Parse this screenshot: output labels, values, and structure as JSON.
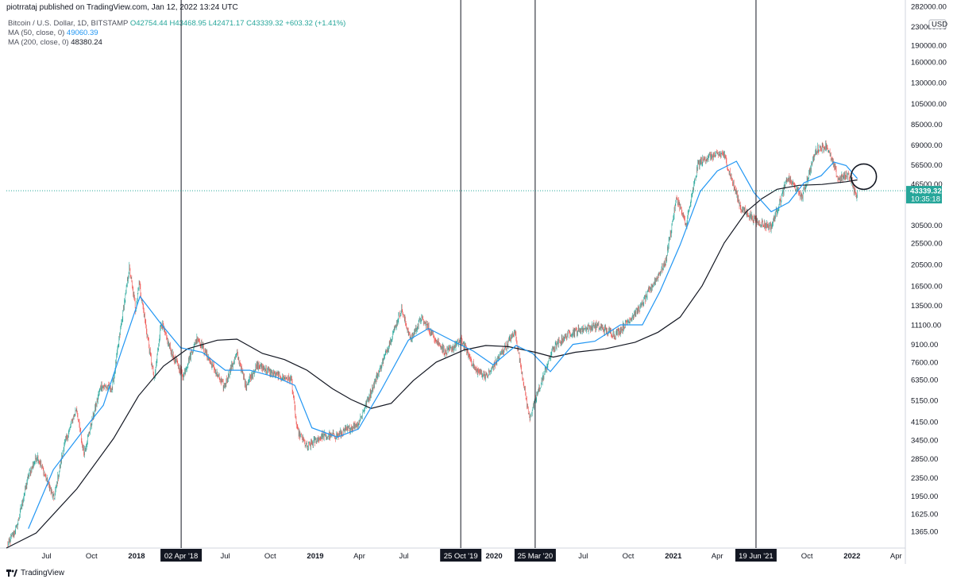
{
  "header": {
    "published": "piotrrataj published on TradingView.com, Jan 12, 2022 13:24 UTC"
  },
  "legend": {
    "symbol": "Bitcoin / U.S. Dollar, 1D, BITSTAMP",
    "open": "O42754.44",
    "high": "H43468.95",
    "low": "L42471.17",
    "close": "C43339.32",
    "change": "+603.32 (+1.41%)",
    "ma50_label": "MA (50, close, 0)",
    "ma50_value": "49060.39",
    "ma200_label": "MA (200, close, 0)",
    "ma200_value": "48380.24"
  },
  "footer": {
    "brand": "TradingView"
  },
  "colors": {
    "up": "#26a69a",
    "down": "#ef5350",
    "ma50": "#2196f3",
    "ma200": "#131722",
    "price_line": "#26a69a",
    "price_label_bg": "#26a69a",
    "marker_bg": "#131722"
  },
  "chart_data": {
    "type": "candlestick",
    "y_scale": "log",
    "y_unit": "USD",
    "ylim": [
      1150,
      282000
    ],
    "y_ticks": [
      {
        "value": 282000,
        "label": "282000.00"
      },
      {
        "value": 230000,
        "label": "230000.00"
      },
      {
        "value": 190000,
        "label": "190000.00"
      },
      {
        "value": 160000,
        "label": "160000.00"
      },
      {
        "value": 130000,
        "label": "130000.00"
      },
      {
        "value": 105000,
        "label": "105000.00"
      },
      {
        "value": 85000,
        "label": "85000.00"
      },
      {
        "value": 69000,
        "label": "69000.00"
      },
      {
        "value": 56500,
        "label": "56500.00"
      },
      {
        "value": 46500,
        "label": "46500.00"
      },
      {
        "value": 30500,
        "label": "30500.00"
      },
      {
        "value": 25500,
        "label": "25500.00"
      },
      {
        "value": 20500,
        "label": "20500.00"
      },
      {
        "value": 16500,
        "label": "16500.00"
      },
      {
        "value": 13500,
        "label": "13500.00"
      },
      {
        "value": 11100,
        "label": "11100.00"
      },
      {
        "value": 9100,
        "label": "9100.00"
      },
      {
        "value": 7600,
        "label": "7600.00"
      },
      {
        "value": 6350,
        "label": "6350.00"
      },
      {
        "value": 5150,
        "label": "5150.00"
      },
      {
        "value": 4150,
        "label": "4150.00"
      },
      {
        "value": 3450,
        "label": "3450.00"
      },
      {
        "value": 2850,
        "label": "2850.00"
      },
      {
        "value": 2350,
        "label": "2350.00"
      },
      {
        "value": 1950,
        "label": "1950.00"
      },
      {
        "value": 1625,
        "label": "1625.00"
      },
      {
        "value": 1365,
        "label": "1365.00"
      }
    ],
    "x_ticks": [
      {
        "date": "2017-07-01",
        "label": "Jul"
      },
      {
        "date": "2017-10-01",
        "label": "Oct"
      },
      {
        "date": "2018-01-01",
        "label": "2018",
        "bold": true
      },
      {
        "date": "2018-07-01",
        "label": "Jul"
      },
      {
        "date": "2018-10-01",
        "label": "Oct"
      },
      {
        "date": "2019-01-01",
        "label": "2019",
        "bold": true
      },
      {
        "date": "2019-04-01",
        "label": "Apr"
      },
      {
        "date": "2019-07-01",
        "label": "Jul"
      },
      {
        "date": "2020-01-01",
        "label": "2020",
        "bold": true
      },
      {
        "date": "2020-07-01",
        "label": "Jul"
      },
      {
        "date": "2020-10-01",
        "label": "Oct"
      },
      {
        "date": "2021-01-01",
        "label": "2021",
        "bold": true
      },
      {
        "date": "2021-04-01",
        "label": "Apr"
      },
      {
        "date": "2021-10-01",
        "label": "Oct"
      },
      {
        "date": "2022-01-01",
        "label": "2022",
        "bold": true
      },
      {
        "date": "2022-04-01",
        "label": "Apr"
      }
    ],
    "x_range": [
      "2017-04-10",
      "2022-04-20"
    ],
    "marked_dates": [
      {
        "date": "2018-04-02",
        "label": "02 Apr '18"
      },
      {
        "date": "2019-10-25",
        "label": "25 Oct '19"
      },
      {
        "date": "2020-03-25",
        "label": "25 Mar '20"
      },
      {
        "date": "2021-06-19",
        "label": "19 Jun '21"
      }
    ],
    "last_price": {
      "value": 43339.32,
      "label": "43339.32",
      "countdown": "10:35:18"
    },
    "axis_unit_label": "USD",
    "price_path": [
      [
        "2017-04-12",
        1180
      ],
      [
        "2017-05-01",
        1420
      ],
      [
        "2017-05-25",
        2400
      ],
      [
        "2017-06-12",
        2950
      ],
      [
        "2017-07-16",
        1900
      ],
      [
        "2017-08-05",
        3200
      ],
      [
        "2017-08-31",
        4750
      ],
      [
        "2017-09-15",
        3000
      ],
      [
        "2017-10-20",
        6000
      ],
      [
        "2017-11-12",
        5800
      ],
      [
        "2017-12-17",
        19800
      ],
      [
        "2017-12-30",
        13000
      ],
      [
        "2018-01-06",
        17100
      ],
      [
        "2018-02-06",
        6300
      ],
      [
        "2018-02-20",
        11400
      ],
      [
        "2018-03-15",
        8200
      ],
      [
        "2018-04-06",
        6600
      ],
      [
        "2018-05-05",
        9800
      ],
      [
        "2018-06-28",
        5900
      ],
      [
        "2018-07-25",
        8300
      ],
      [
        "2018-08-12",
        6000
      ],
      [
        "2018-09-05",
        7400
      ],
      [
        "2018-10-15",
        6600
      ],
      [
        "2018-11-13",
        6400
      ],
      [
        "2018-11-25",
        3800
      ],
      [
        "2018-12-15",
        3200
      ],
      [
        "2019-01-15",
        3600
      ],
      [
        "2019-02-15",
        3600
      ],
      [
        "2019-03-30",
        4100
      ],
      [
        "2019-05-12",
        7000
      ],
      [
        "2019-06-26",
        13000
      ],
      [
        "2019-07-15",
        9500
      ],
      [
        "2019-08-05",
        11900
      ],
      [
        "2019-09-25",
        8300
      ],
      [
        "2019-10-26",
        9500
      ],
      [
        "2019-11-25",
        7000
      ],
      [
        "2019-12-18",
        6600
      ],
      [
        "2020-02-13",
        10400
      ],
      [
        "2020-03-13",
        4300
      ],
      [
        "2020-04-30",
        8700
      ],
      [
        "2020-06-01",
        10200
      ],
      [
        "2020-07-27",
        11000
      ],
      [
        "2020-09-05",
        10000
      ],
      [
        "2020-10-25",
        13200
      ],
      [
        "2020-12-16",
        21000
      ],
      [
        "2021-01-08",
        40500
      ],
      [
        "2021-01-27",
        30500
      ],
      [
        "2021-02-21",
        57000
      ],
      [
        "2021-03-13",
        61000
      ],
      [
        "2021-04-14",
        63000
      ],
      [
        "2021-05-19",
        36500
      ],
      [
        "2021-06-22",
        31500
      ],
      [
        "2021-07-20",
        30000
      ],
      [
        "2021-08-23",
        49500
      ],
      [
        "2021-09-21",
        40500
      ],
      [
        "2021-10-20",
        66000
      ],
      [
        "2021-11-10",
        68500
      ],
      [
        "2021-12-04",
        49000
      ],
      [
        "2021-12-27",
        51000
      ],
      [
        "2022-01-10",
        40500
      ],
      [
        "2022-01-12",
        43339
      ]
    ],
    "ma50_path": [
      [
        "2017-05-25",
        1400
      ],
      [
        "2017-07-15",
        2550
      ],
      [
        "2017-09-10",
        3700
      ],
      [
        "2017-10-25",
        4900
      ],
      [
        "2017-12-01",
        8500
      ],
      [
        "2018-01-08",
        14800
      ],
      [
        "2018-02-20",
        11200
      ],
      [
        "2018-04-01",
        8800
      ],
      [
        "2018-05-15",
        8400
      ],
      [
        "2018-07-01",
        7000
      ],
      [
        "2018-08-20",
        7000
      ],
      [
        "2018-10-15",
        6500
      ],
      [
        "2018-11-20",
        6000
      ],
      [
        "2018-12-25",
        3900
      ],
      [
        "2019-02-15",
        3550
      ],
      [
        "2019-03-30",
        3850
      ],
      [
        "2019-05-15",
        5700
      ],
      [
        "2019-07-10",
        9500
      ],
      [
        "2019-08-20",
        10700
      ],
      [
        "2019-10-10",
        9400
      ],
      [
        "2019-11-20",
        8500
      ],
      [
        "2019-12-30",
        7400
      ],
      [
        "2020-02-15",
        9000
      ],
      [
        "2020-03-20",
        8300
      ],
      [
        "2020-04-25",
        6900
      ],
      [
        "2020-06-10",
        9100
      ],
      [
        "2020-07-25",
        9400
      ],
      [
        "2020-09-15",
        11100
      ],
      [
        "2020-10-30",
        11100
      ],
      [
        "2020-12-05",
        15600
      ],
      [
        "2021-01-15",
        25000
      ],
      [
        "2021-02-25",
        43000
      ],
      [
        "2021-04-01",
        53000
      ],
      [
        "2021-05-10",
        58500
      ],
      [
        "2021-06-15",
        42500
      ],
      [
        "2021-07-20",
        35000
      ],
      [
        "2021-08-25",
        38500
      ],
      [
        "2021-09-25",
        47000
      ],
      [
        "2021-10-30",
        50500
      ],
      [
        "2021-11-25",
        58000
      ],
      [
        "2021-12-20",
        56000
      ],
      [
        "2022-01-12",
        49060
      ]
    ],
    "ma200_path": [
      [
        "2017-04-10",
        1150
      ],
      [
        "2017-06-10",
        1340
      ],
      [
        "2017-09-01",
        2100
      ],
      [
        "2017-11-15",
        3500
      ],
      [
        "2018-01-05",
        5400
      ],
      [
        "2018-02-25",
        7300
      ],
      [
        "2018-04-15",
        8700
      ],
      [
        "2018-06-15",
        9500
      ],
      [
        "2018-07-25",
        9600
      ],
      [
        "2018-09-15",
        8300
      ],
      [
        "2018-10-30",
        7800
      ],
      [
        "2018-12-15",
        7000
      ],
      [
        "2019-02-05",
        5800
      ],
      [
        "2019-03-15",
        5200
      ],
      [
        "2019-04-25",
        4750
      ],
      [
        "2019-06-05",
        5000
      ],
      [
        "2019-07-20",
        6300
      ],
      [
        "2019-09-05",
        7600
      ],
      [
        "2019-11-01",
        8600
      ],
      [
        "2019-12-15",
        9000
      ],
      [
        "2020-01-30",
        8900
      ],
      [
        "2020-03-25",
        8400
      ],
      [
        "2020-05-01",
        8000
      ],
      [
        "2020-06-15",
        8400
      ],
      [
        "2020-08-15",
        8700
      ],
      [
        "2020-10-15",
        9300
      ],
      [
        "2020-12-01",
        10300
      ],
      [
        "2021-01-15",
        12000
      ],
      [
        "2021-03-01",
        16500
      ],
      [
        "2021-04-15",
        25500
      ],
      [
        "2021-05-30",
        35000
      ],
      [
        "2021-07-01",
        40000
      ],
      [
        "2021-08-01",
        44000
      ],
      [
        "2021-09-15",
        45800
      ],
      [
        "2021-11-01",
        46200
      ],
      [
        "2021-12-20",
        47500
      ],
      [
        "2022-01-12",
        48380
      ]
    ]
  }
}
